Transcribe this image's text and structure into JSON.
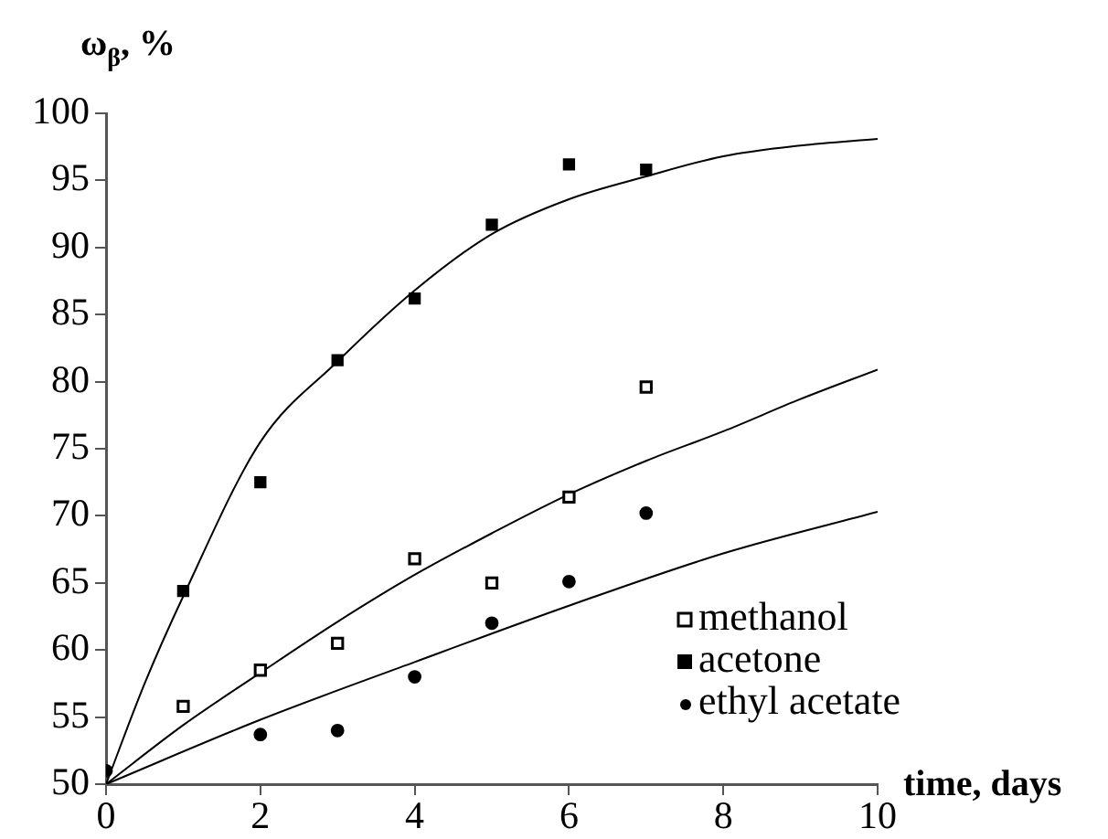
{
  "chart_data": {
    "type": "scatter",
    "xlabel": "time, days",
    "ylabel": "ω$_{β}$, %",
    "xlim": [
      0,
      10
    ],
    "xticks": [
      0,
      2,
      4,
      6,
      8,
      10
    ],
    "ylim": [
      50,
      100
    ],
    "yticks": [
      50,
      55,
      60,
      65,
      70,
      75,
      80,
      85,
      90,
      95,
      100
    ],
    "grid": false,
    "legend": "bottom right",
    "series": [
      {
        "name": "methanol",
        "marker": "square",
        "color": "#ffffff",
        "x": [
          1,
          2,
          3,
          4,
          5,
          6,
          7
        ],
        "values": [
          55.8,
          58.5,
          60.5,
          66.8,
          65.0,
          71.4,
          79.6
        ]
      },
      {
        "name": "acetone",
        "marker": "square",
        "color": "#000000",
        "x": [
          1,
          2,
          3,
          4,
          5,
          6,
          7
        ],
        "values": [
          64.4,
          72.5,
          81.6,
          86.2,
          91.7,
          96.2,
          95.8
        ]
      },
      {
        "name": "ethyl acetate",
        "marker": "circle",
        "color": "#000000",
        "x": [
          0,
          2,
          3,
          4,
          5,
          6,
          7
        ],
        "values": [
          51,
          53.7,
          54.0,
          58.0,
          62.0,
          65.1,
          70.2
        ]
      },
      {
        "type": "line",
        "marker": "none",
        "color": "#000000",
        "x": [
          0,
          0.5,
          1,
          2,
          3,
          4,
          5,
          6,
          7,
          8,
          9,
          10
        ],
        "values": [
          50,
          57.5,
          64,
          75.5,
          81.5,
          86.8,
          91,
          93.6,
          95.3,
          96.8,
          97.6,
          98.1
        ]
      },
      {
        "type": "line",
        "marker": "none",
        "color": "#000000",
        "x": [
          0,
          1,
          2,
          3,
          4,
          5,
          6,
          7,
          8,
          9,
          10
        ],
        "values": [
          50,
          54.4,
          58.3,
          62.1,
          65.6,
          68.7,
          71.6,
          74.1,
          76.3,
          78.7,
          80.9
        ]
      },
      {
        "type": "line",
        "marker": "none",
        "color": "#000000",
        "x": [
          0,
          2,
          4,
          6,
          8,
          10
        ],
        "values": [
          50,
          54.8,
          59.1,
          63.3,
          67.2,
          70.3
        ]
      }
    ]
  }
}
